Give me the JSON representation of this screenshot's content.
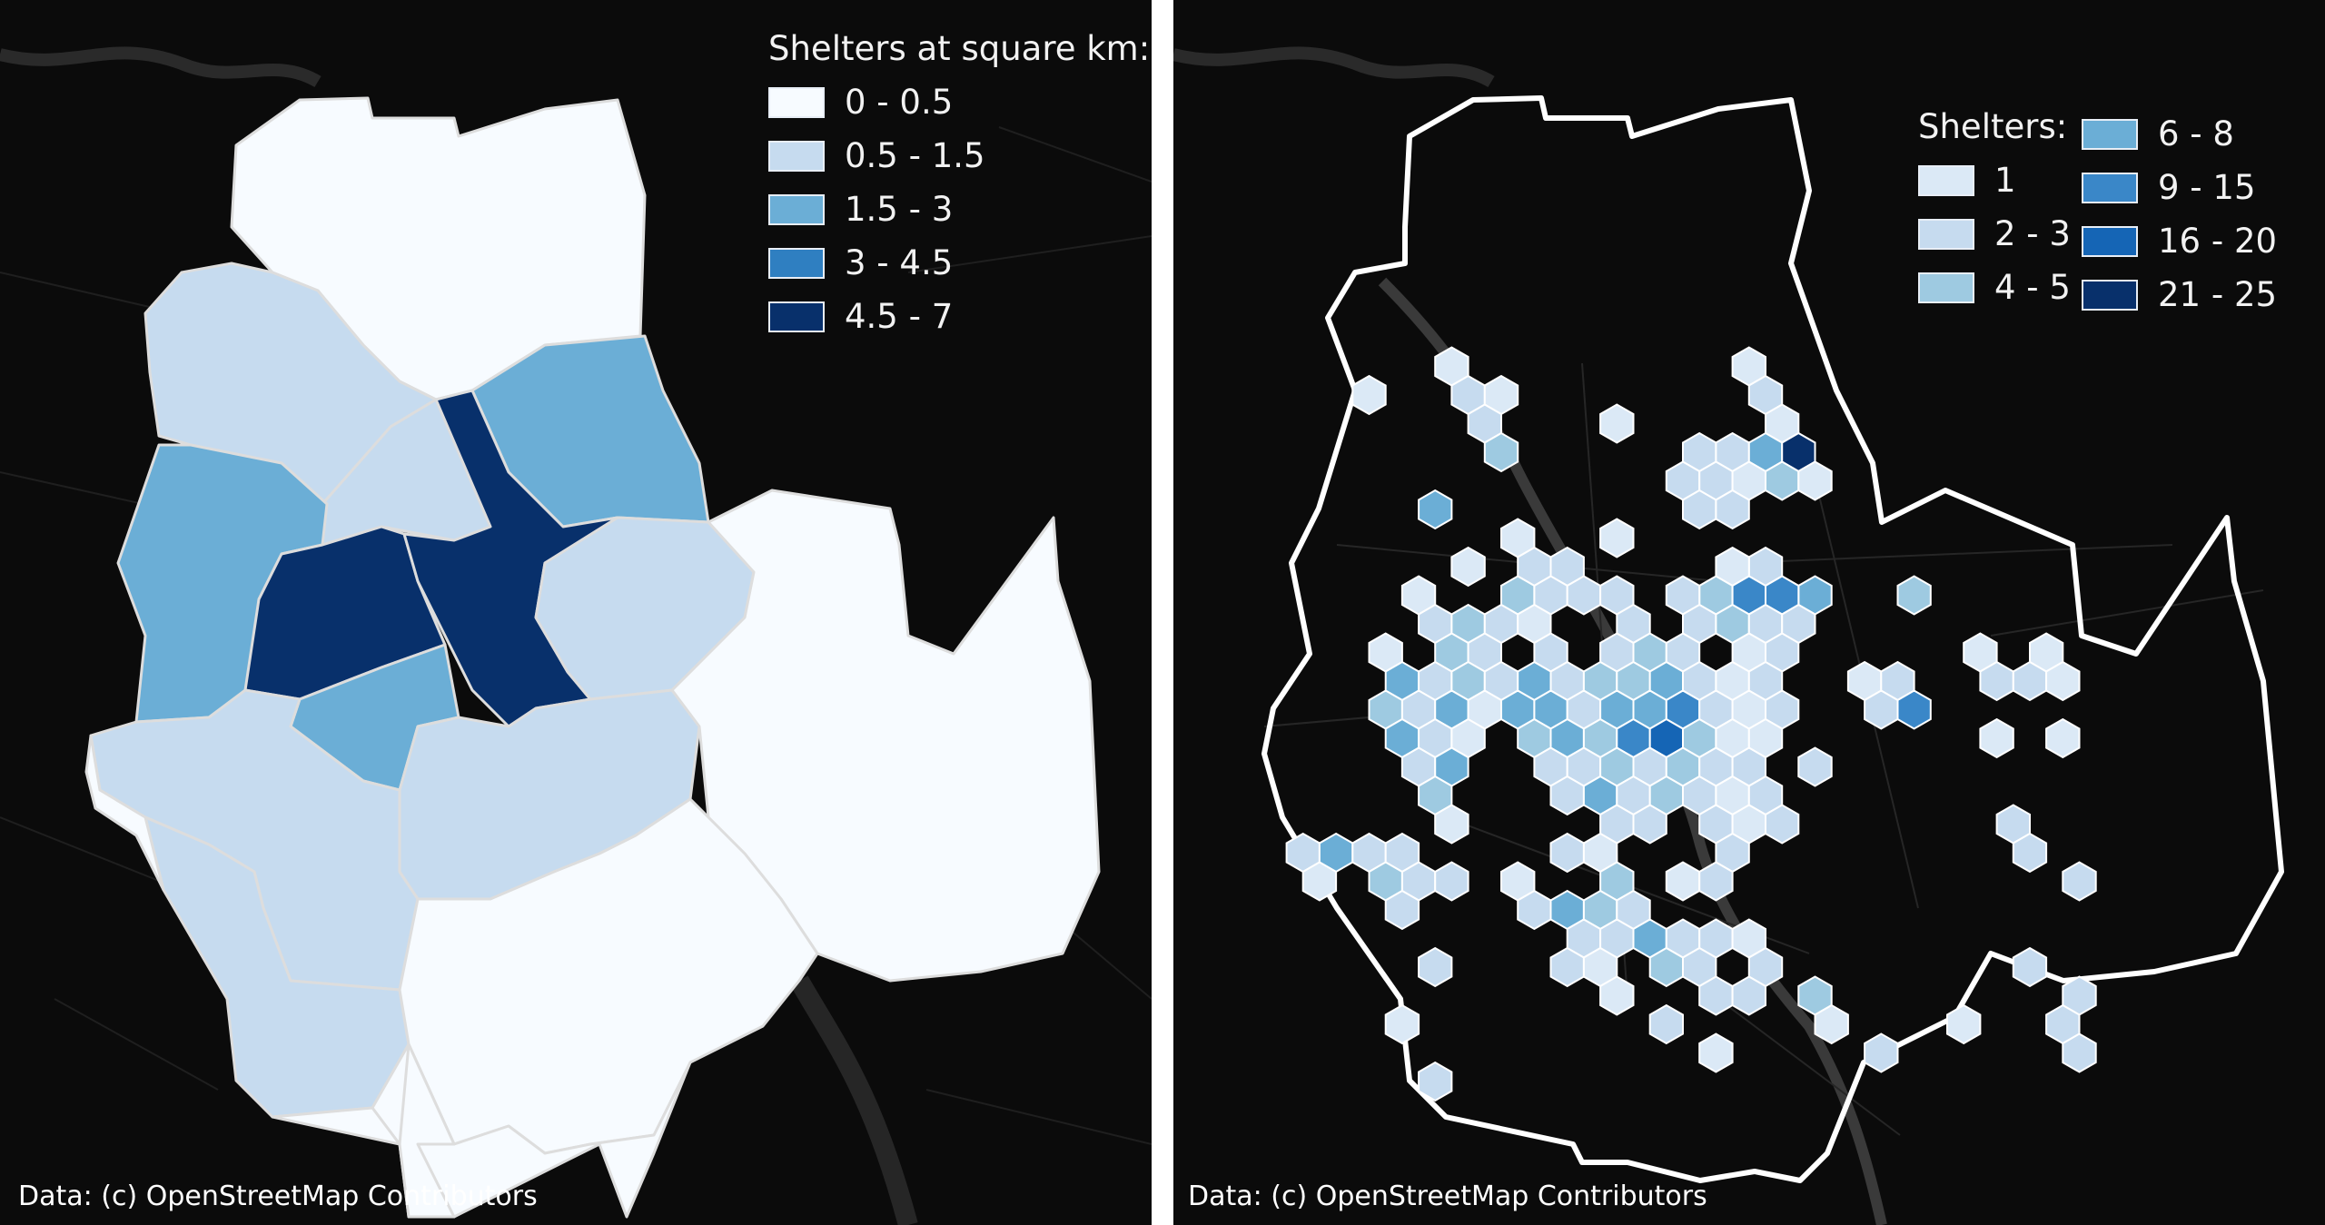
{
  "left_map": {
    "legend_title": "Shelters at square km:",
    "legend": [
      {
        "label": "0 - 0.5",
        "color": "#f7fbff"
      },
      {
        "label": "0.5 - 1.5",
        "color": "#c6dbef"
      },
      {
        "label": "1.5 - 3",
        "color": "#6baed6"
      },
      {
        "label": "3 - 4.5",
        "color": "#2f7fc1"
      },
      {
        "label": "4.5 - 7",
        "color": "#08306b"
      }
    ],
    "attribution": "Data: (c) OpenStreetMap Contributors"
  },
  "right_map": {
    "legend_title": "Shelters:",
    "legend": [
      {
        "label": "1",
        "color": "#dbe9f6"
      },
      {
        "label": "2 - 3",
        "color": "#c6dbef"
      },
      {
        "label": "4 - 5",
        "color": "#9ecae1"
      },
      {
        "label": "6 - 8",
        "color": "#6baed6"
      },
      {
        "label": "9 - 15",
        "color": "#3a87c8"
      },
      {
        "label": "16 - 20",
        "color": "#1565b5"
      },
      {
        "label": "21 - 25",
        "color": "#08306b"
      }
    ],
    "attribution": "Data: (c) OpenStreetMap Contributors"
  }
}
